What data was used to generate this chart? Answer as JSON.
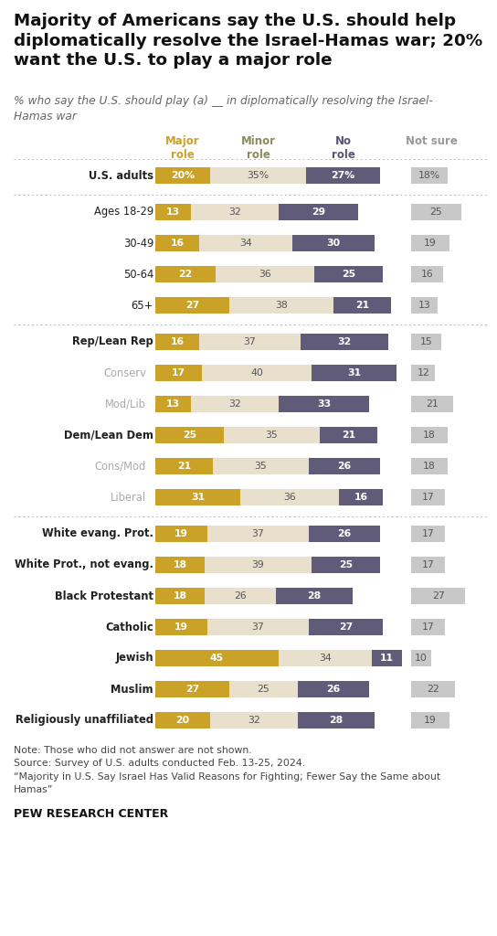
{
  "title_line1": "Majority of Americans say the U.S. should help",
  "title_line2": "diplomatically resolve the Israel-Hamas war; 20%",
  "title_line3": "want the U.S. to play a major role",
  "subtitle": "% who say the U.S. should play (a) __ in diplomatically resolving the Israel-\nHamas war",
  "note": "Note: Those who did not answer are not shown.\nSource: Survey of U.S. adults conducted Feb. 13-25, 2024.\n“Majority in U.S. Say Israel Has Valid Reasons for Fighting; Fewer Say the Same about\nHamas”",
  "footer": "PEW RESEARCH CENTER",
  "col_header_colors": [
    "#c9a227",
    "#8a8a5a",
    "#5a5475",
    "#999999"
  ],
  "rows": [
    {
      "label": "U.S. adults",
      "bold": true,
      "indent": false,
      "major": 20,
      "minor": 35,
      "no": 27,
      "not_sure": 18,
      "show_pct": true,
      "group_sep_after": true,
      "top_sep": true
    },
    {
      "label": "Ages 18-29",
      "bold": false,
      "indent": false,
      "major": 13,
      "minor": 32,
      "no": 29,
      "not_sure": 25,
      "show_pct": false,
      "group_sep_after": false,
      "top_sep": false
    },
    {
      "label": "30-49",
      "bold": false,
      "indent": false,
      "major": 16,
      "minor": 34,
      "no": 30,
      "not_sure": 19,
      "show_pct": false,
      "group_sep_after": false,
      "top_sep": false
    },
    {
      "label": "50-64",
      "bold": false,
      "indent": false,
      "major": 22,
      "minor": 36,
      "no": 25,
      "not_sure": 16,
      "show_pct": false,
      "group_sep_after": false,
      "top_sep": false
    },
    {
      "label": "65+",
      "bold": false,
      "indent": false,
      "major": 27,
      "minor": 38,
      "no": 21,
      "not_sure": 13,
      "show_pct": false,
      "group_sep_after": true,
      "top_sep": false
    },
    {
      "label": "Rep/Lean Rep",
      "bold": true,
      "indent": false,
      "major": 16,
      "minor": 37,
      "no": 32,
      "not_sure": 15,
      "show_pct": false,
      "group_sep_after": false,
      "top_sep": false
    },
    {
      "label": "Conserv",
      "bold": false,
      "indent": true,
      "major": 17,
      "minor": 40,
      "no": 31,
      "not_sure": 12,
      "show_pct": false,
      "group_sep_after": false,
      "top_sep": false
    },
    {
      "label": "Mod/Lib",
      "bold": false,
      "indent": true,
      "major": 13,
      "minor": 32,
      "no": 33,
      "not_sure": 21,
      "show_pct": false,
      "group_sep_after": false,
      "top_sep": false
    },
    {
      "label": "Dem/Lean Dem",
      "bold": true,
      "indent": false,
      "major": 25,
      "minor": 35,
      "no": 21,
      "not_sure": 18,
      "show_pct": false,
      "group_sep_after": false,
      "top_sep": false
    },
    {
      "label": "Cons/Mod",
      "bold": false,
      "indent": true,
      "major": 21,
      "minor": 35,
      "no": 26,
      "not_sure": 18,
      "show_pct": false,
      "group_sep_after": false,
      "top_sep": false
    },
    {
      "label": "Liberal",
      "bold": false,
      "indent": true,
      "major": 31,
      "minor": 36,
      "no": 16,
      "not_sure": 17,
      "show_pct": false,
      "group_sep_after": true,
      "top_sep": false
    },
    {
      "label": "White evang. Prot.",
      "bold": true,
      "indent": false,
      "major": 19,
      "minor": 37,
      "no": 26,
      "not_sure": 17,
      "show_pct": false,
      "group_sep_after": false,
      "top_sep": false
    },
    {
      "label": "White Prot., not evang.",
      "bold": true,
      "indent": false,
      "major": 18,
      "minor": 39,
      "no": 25,
      "not_sure": 17,
      "show_pct": false,
      "group_sep_after": false,
      "top_sep": false
    },
    {
      "label": "Black Protestant",
      "bold": true,
      "indent": false,
      "major": 18,
      "minor": 26,
      "no": 28,
      "not_sure": 27,
      "show_pct": false,
      "group_sep_after": false,
      "top_sep": false
    },
    {
      "label": "Catholic",
      "bold": true,
      "indent": false,
      "major": 19,
      "minor": 37,
      "no": 27,
      "not_sure": 17,
      "show_pct": false,
      "group_sep_after": false,
      "top_sep": false
    },
    {
      "label": "Jewish",
      "bold": true,
      "indent": false,
      "major": 45,
      "minor": 34,
      "no": 11,
      "not_sure": 10,
      "show_pct": false,
      "group_sep_after": false,
      "top_sep": false
    },
    {
      "label": "Muslim",
      "bold": true,
      "indent": false,
      "major": 27,
      "minor": 25,
      "no": 26,
      "not_sure": 22,
      "show_pct": false,
      "group_sep_after": false,
      "top_sep": false
    },
    {
      "label": "Religiously unaffiliated",
      "bold": true,
      "indent": false,
      "major": 20,
      "minor": 32,
      "no": 28,
      "not_sure": 19,
      "show_pct": false,
      "group_sep_after": false,
      "top_sep": false
    }
  ],
  "colors": {
    "major": "#c9a227",
    "minor": "#e8e0cc",
    "no": "#615b7a",
    "not_sure": "#c8c8c8",
    "bg": "#ffffff"
  }
}
